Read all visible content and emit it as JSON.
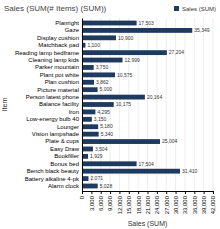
{
  "chart_data": {
    "type": "bar",
    "orientation": "horizontal",
    "title": "Sales (SUM(# Items) (SUM))",
    "xlabel": "Sales (SUM)",
    "ylabel": "Item",
    "categories": [
      "Planright",
      "Gaze",
      "Display cushion",
      "Matchback pad",
      "Reading lamp bedframe",
      "Cleaning lamp kids",
      "Parker mountain",
      "Plant pot white",
      "Plan cushion",
      "Picture material",
      "Person latest phone",
      "Balance facility",
      "Iron",
      "Low-energy bulb 40",
      "Lounger",
      "Vision lampshade",
      "Plate & cups",
      "Easy Draw",
      "Bookfiller",
      "Bonus bed",
      "Bench black beauty",
      "Battery alkaline 4-pk",
      "Alarm clock"
    ],
    "series": [
      {
        "name": "Sales (SUM)",
        "color": "#1e3a5f",
        "values": [
          17503,
          35349,
          10900,
          1100,
          27204,
          12999,
          3750,
          10575,
          3862,
          5000,
          20164,
          10175,
          4295,
          3150,
          5180,
          5340,
          25004,
          3504,
          1929,
          17504,
          31410,
          2071,
          5028
        ],
        "value_labels": [
          "17,503",
          "35,349",
          "10,900",
          "1,100",
          "27,204",
          "12,999",
          "3,750",
          "10,575",
          "3,862",
          "5,000",
          "20,164",
          "10,175",
          "4,295",
          "3,150",
          "5,180",
          "5,340",
          "25,004",
          "3,504",
          "1,929",
          "17,504",
          "31,410",
          "2,071",
          "5,028"
        ]
      }
    ],
    "xlim": [
      0,
      42000
    ],
    "xticks": [
      0,
      {
        "value": 3000,
        "label": "3,000"
      },
      {
        "value": 6000,
        "label": "6,000"
      },
      {
        "value": 9000,
        "label": "9,000"
      },
      {
        "value": 12000,
        "label": "12,000"
      },
      {
        "value": 15000,
        "label": "15,000"
      },
      {
        "value": 18000,
        "label": "18,000"
      },
      {
        "value": 21000,
        "label": "21,000"
      },
      {
        "value": 24000,
        "label": "24,000"
      },
      {
        "value": 27000,
        "label": "27,000"
      },
      {
        "value": 30000,
        "label": "30,000"
      },
      {
        "value": 33000,
        "label": "33,000"
      },
      {
        "value": 36000,
        "label": "36,000"
      },
      {
        "value": 39000,
        "label": "39,000"
      },
      {
        "value": 42000,
        "label": "42,000"
      }
    ],
    "grid": true,
    "data_labels": true,
    "legend": "top-right"
  }
}
